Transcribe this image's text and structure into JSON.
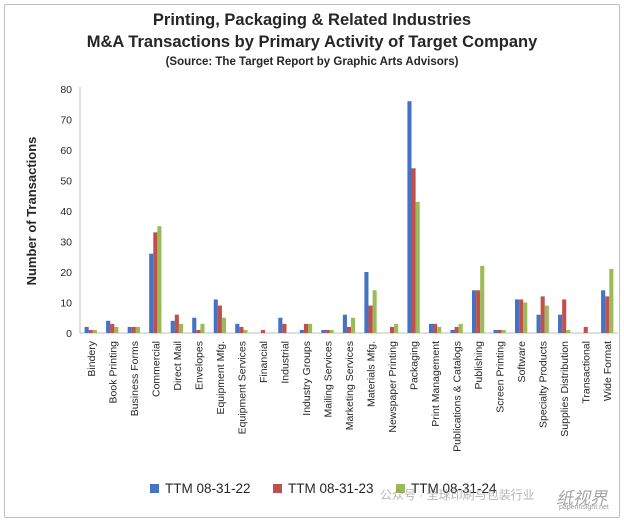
{
  "chart_data": {
    "type": "bar",
    "title": "Printing, Packaging & Related Industries",
    "subtitle": "M&A Transactions by Primary Activity of Target Company",
    "source": "(Source: The Target Report by Graphic Arts Advisors)",
    "ylabel": "Number of Transactions",
    "xlabel": "",
    "ylim": [
      0,
      80
    ],
    "yticks": [
      0,
      10,
      20,
      30,
      40,
      50,
      60,
      70,
      80
    ],
    "grid": false,
    "legend_position": "bottom",
    "categories": [
      "Bindery",
      "Book Printing",
      "Business Forms",
      "Commercial",
      "Direct Mail",
      "Envelopes",
      "Equipment Mfg.",
      "Equipment Services",
      "Financial",
      "Industrial",
      "Industry Groups",
      "Mailing Services",
      "Marketing Services",
      "Materials Mfg.",
      "Newspaper Printing",
      "Packaging",
      "Print Management",
      "Publications & Catalogs",
      "Publishing",
      "Screen Printing",
      "Software",
      "Specialty Products",
      "Supplies Distribution",
      "Transactional",
      "Wide Format"
    ],
    "series": [
      {
        "name": "TTM 08-31-22",
        "color": "#4472c4",
        "values": [
          2,
          4,
          2,
          26,
          4,
          5,
          11,
          3,
          0,
          5,
          1,
          1,
          6,
          20,
          0,
          76,
          3,
          1,
          14,
          1,
          11,
          6,
          6,
          0,
          14
        ]
      },
      {
        "name": "TTM 08-31-23",
        "color": "#c0504d",
        "values": [
          1,
          3,
          2,
          33,
          6,
          1,
          9,
          2,
          1,
          3,
          3,
          1,
          2,
          9,
          2,
          54,
          3,
          2,
          14,
          1,
          11,
          12,
          11,
          2,
          12
        ]
      },
      {
        "name": "TTM 08-31-24",
        "color": "#9bbb59",
        "values": [
          1,
          2,
          2,
          35,
          3,
          3,
          5,
          1,
          0,
          0,
          3,
          1,
          5,
          14,
          3,
          43,
          2,
          3,
          22,
          1,
          10,
          9,
          1,
          0,
          21
        ]
      }
    ]
  },
  "watermark": {
    "text": "公众号 · 全球印刷与包装行业",
    "logo": "纸视界",
    "url": "paperinsight.net"
  }
}
